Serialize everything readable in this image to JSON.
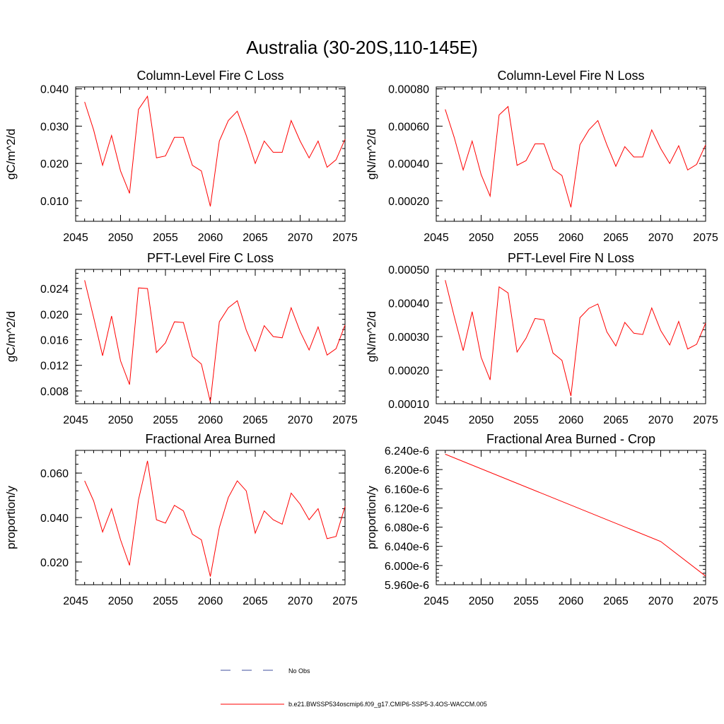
{
  "page_title": "Australia (30-20S,110-145E)",
  "chart_data": [
    {
      "type": "line",
      "title": "Column-Level Fire C Loss",
      "ylabel": "gC/m^2/d",
      "xlabel": "",
      "xlim": [
        2045,
        2075
      ],
      "ylim": [
        0.0045,
        0.0405
      ],
      "xticks": [
        2045,
        2050,
        2055,
        2060,
        2065,
        2070,
        2075
      ],
      "yticks": [
        0.01,
        0.02,
        0.03,
        0.04
      ],
      "ytick_labels": [
        "0.010",
        "0.020",
        "0.030",
        "0.040"
      ],
      "x": [
        2046,
        2047,
        2048,
        2049,
        2050,
        2051,
        2052,
        2053,
        2054,
        2055,
        2056,
        2057,
        2058,
        2059,
        2060,
        2061,
        2062,
        2063,
        2064,
        2065,
        2066,
        2067,
        2068,
        2069,
        2070,
        2071,
        2072,
        2073,
        2074,
        2075
      ],
      "values": [
        0.0365,
        0.029,
        0.0195,
        0.0275,
        0.018,
        0.012,
        0.0345,
        0.038,
        0.0215,
        0.022,
        0.027,
        0.027,
        0.0195,
        0.018,
        0.0085,
        0.026,
        0.0315,
        0.034,
        0.0275,
        0.02,
        0.026,
        0.023,
        0.023,
        0.0315,
        0.026,
        0.0215,
        0.026,
        0.019,
        0.021,
        0.0265
      ]
    },
    {
      "type": "line",
      "title": "Column-Level Fire N Loss",
      "ylabel": "gN/m^2/d",
      "xlabel": "",
      "xlim": [
        2045,
        2075
      ],
      "ylim": [
        9e-05,
        0.00081
      ],
      "xticks": [
        2045,
        2050,
        2055,
        2060,
        2065,
        2070,
        2075
      ],
      "yticks": [
        0.0002,
        0.0004,
        0.0006,
        0.0008
      ],
      "ytick_labels": [
        "0.00020",
        "0.00040",
        "0.00060",
        "0.00080"
      ],
      "x": [
        2046,
        2047,
        2048,
        2049,
        2050,
        2051,
        2052,
        2053,
        2054,
        2055,
        2056,
        2057,
        2058,
        2059,
        2060,
        2061,
        2062,
        2063,
        2064,
        2065,
        2066,
        2067,
        2068,
        2069,
        2070,
        2071,
        2072,
        2073,
        2074,
        2075
      ],
      "values": [
        0.00069,
        0.00054,
        0.000365,
        0.00052,
        0.00034,
        0.000225,
        0.00066,
        0.000705,
        0.00039,
        0.000415,
        0.000505,
        0.000505,
        0.00037,
        0.000335,
        0.000165,
        0.0005,
        0.00058,
        0.00063,
        0.0005,
        0.000385,
        0.00049,
        0.000435,
        0.000435,
        0.00058,
        0.00048,
        0.0004,
        0.000495,
        0.000365,
        0.000395,
        0.0005
      ]
    },
    {
      "type": "line",
      "title": "PFT-Level Fire C Loss",
      "ylabel": "gC/m^2/d",
      "xlabel": "",
      "xlim": [
        2045,
        2075
      ],
      "ylim": [
        0.006,
        0.027
      ],
      "xticks": [
        2045,
        2050,
        2055,
        2060,
        2065,
        2070,
        2075
      ],
      "yticks": [
        0.008,
        0.012,
        0.016,
        0.02,
        0.024
      ],
      "ytick_labels": [
        "0.008",
        "0.012",
        "0.016",
        "0.020",
        "0.024"
      ],
      "x": [
        2046,
        2047,
        2048,
        2049,
        2050,
        2051,
        2052,
        2053,
        2054,
        2055,
        2056,
        2057,
        2058,
        2059,
        2060,
        2061,
        2062,
        2063,
        2064,
        2065,
        2066,
        2067,
        2068,
        2069,
        2070,
        2071,
        2072,
        2073,
        2074,
        2075
      ],
      "values": [
        0.0253,
        0.0195,
        0.0135,
        0.0197,
        0.0127,
        0.009,
        0.0241,
        0.024,
        0.014,
        0.0155,
        0.0188,
        0.0187,
        0.0134,
        0.0122,
        0.0063,
        0.0188,
        0.021,
        0.0221,
        0.0175,
        0.0142,
        0.0182,
        0.0165,
        0.0163,
        0.021,
        0.0173,
        0.0144,
        0.018,
        0.0136,
        0.0146,
        0.0183
      ]
    },
    {
      "type": "line",
      "title": "PFT-Level Fire N Loss",
      "ylabel": "gN/m^2/d",
      "xlabel": "",
      "xlim": [
        2045,
        2075
      ],
      "ylim": [
        0.0001,
        0.0005
      ],
      "xticks": [
        2045,
        2050,
        2055,
        2060,
        2065,
        2070,
        2075
      ],
      "yticks": [
        0.0001,
        0.0002,
        0.0003,
        0.0004,
        0.0005
      ],
      "ytick_labels": [
        "0.00010",
        "0.00020",
        "0.00030",
        "0.00040",
        "0.00050"
      ],
      "x": [
        2046,
        2047,
        2048,
        2049,
        2050,
        2051,
        2052,
        2053,
        2054,
        2055,
        2056,
        2057,
        2058,
        2059,
        2060,
        2061,
        2062,
        2063,
        2064,
        2065,
        2066,
        2067,
        2068,
        2069,
        2070,
        2071,
        2072,
        2073,
        2074,
        2075
      ],
      "values": [
        0.000468,
        0.00036,
        0.000258,
        0.000374,
        0.000238,
        0.000171,
        0.000448,
        0.00043,
        0.000254,
        0.000295,
        0.000354,
        0.00035,
        0.000251,
        0.000229,
        0.000123,
        0.000356,
        0.000384,
        0.000397,
        0.000314,
        0.000272,
        0.000342,
        0.00031,
        0.000306,
        0.000385,
        0.000318,
        0.000275,
        0.000345,
        0.000263,
        0.000277,
        0.00034
      ]
    },
    {
      "type": "line",
      "title": "Fractional Area Burned",
      "ylabel": "proportion/y",
      "xlabel": "",
      "xlim": [
        2045,
        2075
      ],
      "ylim": [
        0.0098,
        0.0702
      ],
      "xticks": [
        2045,
        2050,
        2055,
        2060,
        2065,
        2070,
        2075
      ],
      "yticks": [
        0.02,
        0.04,
        0.06
      ],
      "ytick_labels": [
        "0.020",
        "0.040",
        "0.060"
      ],
      "x": [
        2046,
        2047,
        2048,
        2049,
        2050,
        2051,
        2052,
        2053,
        2054,
        2055,
        2056,
        2057,
        2058,
        2059,
        2060,
        2061,
        2062,
        2063,
        2064,
        2065,
        2066,
        2067,
        2068,
        2069,
        2070,
        2071,
        2072,
        2073,
        2074,
        2075
      ],
      "values": [
        0.0565,
        0.0475,
        0.0335,
        0.044,
        0.03,
        0.0185,
        0.048,
        0.0655,
        0.039,
        0.0375,
        0.0455,
        0.043,
        0.0325,
        0.03,
        0.0135,
        0.0355,
        0.049,
        0.0565,
        0.052,
        0.033,
        0.043,
        0.039,
        0.037,
        0.051,
        0.046,
        0.039,
        0.044,
        0.0305,
        0.0315,
        0.045
      ]
    },
    {
      "type": "line",
      "title": "Fractional Area Burned - Crop",
      "ylabel": "proportion/y",
      "xlabel": "",
      "xlim": [
        2045,
        2075
      ],
      "ylim": [
        5.96e-06,
        6.24e-06
      ],
      "xticks": [
        2045,
        2050,
        2055,
        2060,
        2065,
        2070,
        2075
      ],
      "yticks": [
        5.96e-06,
        6e-06,
        6.04e-06,
        6.08e-06,
        6.12e-06,
        6.16e-06,
        6.2e-06,
        6.24e-06
      ],
      "ytick_labels": [
        "5.960e-6",
        "6.000e-6",
        "6.040e-6",
        "6.080e-6",
        "6.120e-6",
        "6.160e-6",
        "6.200e-6",
        "6.240e-6"
      ],
      "x": [
        2046,
        2070,
        2075
      ],
      "values": [
        6.232e-06,
        6.05e-06,
        5.978e-06
      ]
    }
  ],
  "legend": {
    "items": [
      {
        "label": "No Obs",
        "color": "#3f4f9f",
        "style": "dashed"
      },
      {
        "label": "b.e21.BWSSP534oscmip6.f09_g17.CMIP6-SSP5-3.4OS-WACCM.005",
        "color": "#ff0000",
        "style": "solid"
      }
    ]
  },
  "colors": {
    "series": "#ff0000",
    "axis": "#000000"
  }
}
